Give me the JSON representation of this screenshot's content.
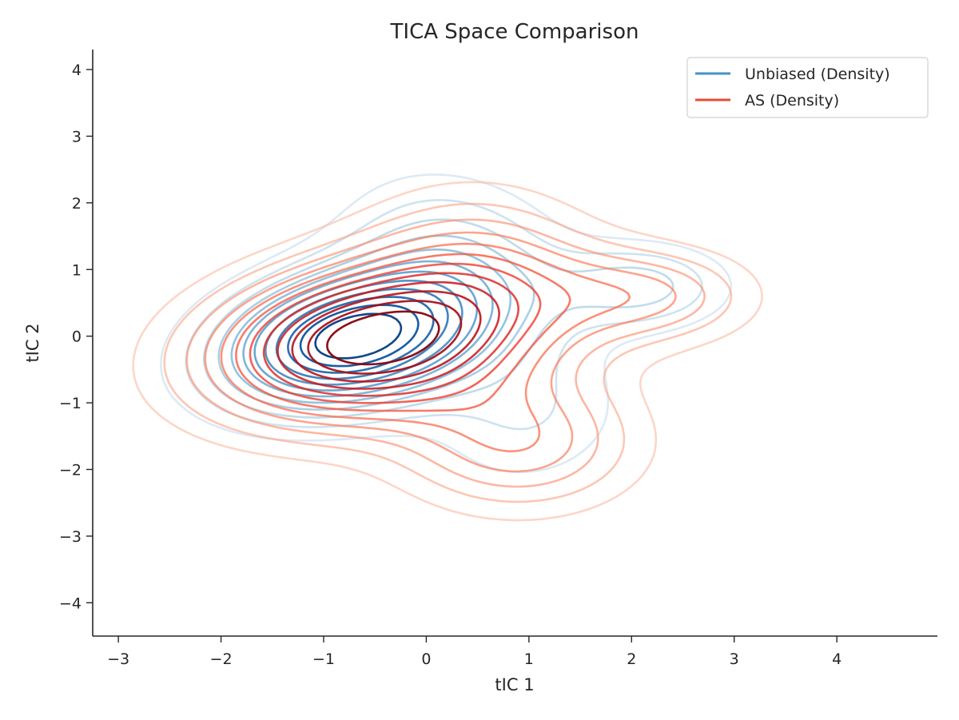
{
  "chart_data": {
    "type": "contour",
    "title": "TICA Space Comparison",
    "xlabel": "tIC 1",
    "ylabel": "tIC 2",
    "xlim": [
      -3.25,
      4.98
    ],
    "ylim": [
      -4.5,
      4.3
    ],
    "xticks": [
      -3,
      -2,
      -1,
      0,
      1,
      2,
      3,
      4
    ],
    "yticks": [
      -4,
      -3,
      -2,
      -1,
      0,
      1,
      2,
      3,
      4
    ],
    "xtick_labels": [
      "−3",
      "−2",
      "−1",
      "0",
      "1",
      "2",
      "3",
      "4"
    ],
    "ytick_labels": [
      "−4",
      "−3",
      "−2",
      "−1",
      "0",
      "1",
      "2",
      "3",
      "4"
    ],
    "grid": false,
    "legend_position": "top-right",
    "levels": 12,
    "series": [
      {
        "name": "Unbiased (Density)",
        "legend_color": "#4292c6",
        "colormap": [
          "#deebf7",
          "#c6dbef",
          "#9ecae1",
          "#6baed6",
          "#4292c6",
          "#2171b5",
          "#08519c",
          "#08306b"
        ],
        "components": [
          {
            "mx": -0.75,
            "my": -0.05,
            "sx": 0.85,
            "sy": 0.7,
            "rho": 0.25,
            "w": 0.62
          },
          {
            "mx": 0.3,
            "my": 1.1,
            "sx": 0.75,
            "sy": 0.9,
            "rho": -0.2,
            "w": 0.2
          },
          {
            "mx": 2.1,
            "my": 0.75,
            "sx": 0.6,
            "sy": 0.45,
            "rho": 0.0,
            "w": 0.08
          },
          {
            "mx": 1.0,
            "my": -1.2,
            "sx": 0.7,
            "sy": 0.8,
            "rho": 0.1,
            "w": 0.1
          }
        ]
      },
      {
        "name": "AS (Density)",
        "legend_color": "#e64b35",
        "colormap": [
          "#fee0d2",
          "#fcbba1",
          "#fc9272",
          "#fb6a4a",
          "#ef3b2c",
          "#cb181d",
          "#a50f15",
          "#67000d"
        ],
        "components": [
          {
            "mx": -0.6,
            "my": -0.1,
            "sx": 1.05,
            "sy": 0.8,
            "rho": 0.2,
            "w": 0.6
          },
          {
            "mx": 0.6,
            "my": 0.9,
            "sx": 0.8,
            "sy": 0.9,
            "rho": -0.1,
            "w": 0.16
          },
          {
            "mx": 2.2,
            "my": 0.6,
            "sx": 0.7,
            "sy": 0.5,
            "rho": 0.0,
            "w": 0.08
          },
          {
            "mx": 0.9,
            "my": -1.6,
            "sx": 0.8,
            "sy": 0.7,
            "rho": 0.0,
            "w": 0.16
          }
        ]
      }
    ]
  }
}
